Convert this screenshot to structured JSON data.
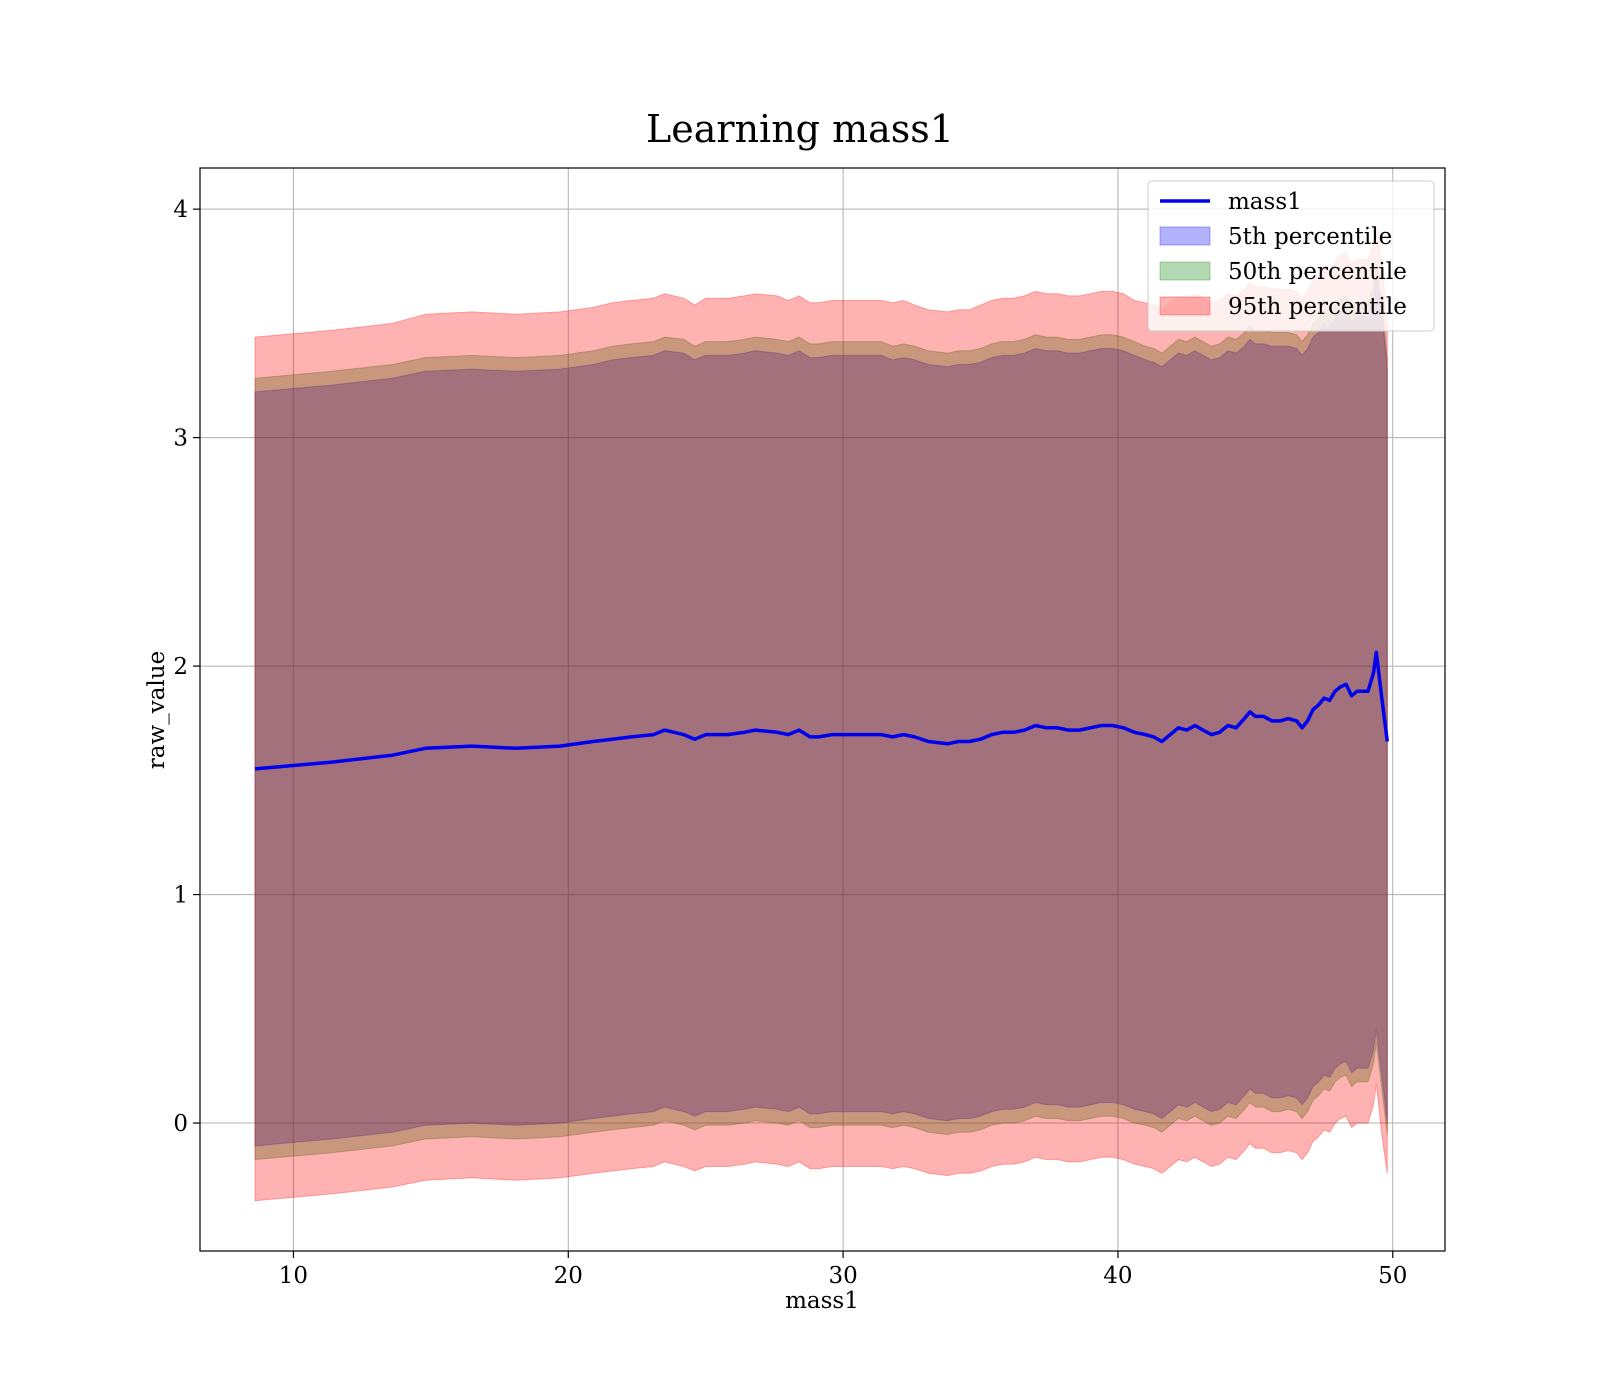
{
  "chart_data": {
    "type": "line",
    "title": "Learning mass1",
    "xlabel": "mass1",
    "ylabel": "raw_value",
    "xlim": [
      6.6,
      51.9
    ],
    "ylim": [
      -0.56,
      4.18
    ],
    "xticks": [
      10,
      20,
      30,
      40,
      50
    ],
    "yticks": [
      0,
      1,
      2,
      3,
      4
    ],
    "grid": true,
    "legend_position": "top-right",
    "colors": {
      "line": "#0000ee",
      "p5": "#0000ff",
      "p50": "#008000",
      "p95": "#ff0000"
    },
    "x": [
      8.6,
      11.4,
      13.6,
      14.8,
      16.5,
      18.1,
      19.7,
      20.9,
      21.6,
      22.3,
      23.1,
      23.5,
      24.2,
      24.6,
      25.0,
      25.8,
      26.4,
      26.8,
      27.6,
      28.0,
      28.4,
      28.8,
      29.1,
      29.6,
      30.0,
      30.6,
      31.4,
      31.8,
      32.2,
      32.6,
      33.1,
      33.8,
      34.2,
      34.6,
      35.0,
      35.4,
      35.8,
      36.2,
      36.6,
      37.0,
      37.4,
      37.8,
      38.2,
      38.6,
      39.0,
      39.4,
      39.8,
      40.2,
      40.6,
      41.0,
      41.3,
      41.6,
      41.9,
      42.2,
      42.5,
      42.8,
      43.1,
      43.4,
      43.7,
      44.0,
      44.3,
      44.6,
      44.8,
      45.0,
      45.3,
      45.6,
      45.9,
      46.2,
      46.5,
      46.7,
      46.9,
      47.1,
      47.3,
      47.5,
      47.7,
      47.9,
      48.1,
      48.3,
      48.5,
      48.7,
      48.9,
      49.1,
      49.3,
      49.4,
      49.6,
      49.8
    ],
    "series": [
      {
        "name": "mass1",
        "values": [
          1.55,
          1.58,
          1.61,
          1.64,
          1.65,
          1.64,
          1.65,
          1.67,
          1.68,
          1.69,
          1.7,
          1.72,
          1.7,
          1.68,
          1.7,
          1.7,
          1.71,
          1.72,
          1.71,
          1.7,
          1.72,
          1.69,
          1.69,
          1.7,
          1.7,
          1.7,
          1.7,
          1.69,
          1.7,
          1.69,
          1.67,
          1.66,
          1.67,
          1.67,
          1.68,
          1.7,
          1.71,
          1.71,
          1.72,
          1.74,
          1.73,
          1.73,
          1.72,
          1.72,
          1.73,
          1.74,
          1.74,
          1.73,
          1.71,
          1.7,
          1.69,
          1.67,
          1.7,
          1.73,
          1.72,
          1.74,
          1.72,
          1.7,
          1.71,
          1.74,
          1.73,
          1.77,
          1.8,
          1.78,
          1.78,
          1.76,
          1.76,
          1.77,
          1.76,
          1.73,
          1.76,
          1.81,
          1.83,
          1.86,
          1.85,
          1.89,
          1.91,
          1.92,
          1.87,
          1.89,
          1.89,
          1.89,
          1.97,
          2.06,
          1.86,
          1.67
        ]
      },
      {
        "name": "5th percentile",
        "upper": [
          3.2,
          3.23,
          3.26,
          3.29,
          3.3,
          3.29,
          3.3,
          3.32,
          3.34,
          3.35,
          3.36,
          3.38,
          3.37,
          3.34,
          3.36,
          3.36,
          3.37,
          3.38,
          3.37,
          3.36,
          3.38,
          3.35,
          3.35,
          3.36,
          3.36,
          3.36,
          3.36,
          3.34,
          3.35,
          3.34,
          3.32,
          3.31,
          3.32,
          3.32,
          3.33,
          3.35,
          3.36,
          3.36,
          3.37,
          3.39,
          3.38,
          3.38,
          3.37,
          3.37,
          3.38,
          3.39,
          3.39,
          3.38,
          3.36,
          3.34,
          3.33,
          3.31,
          3.34,
          3.37,
          3.36,
          3.38,
          3.36,
          3.34,
          3.35,
          3.38,
          3.37,
          3.4,
          3.43,
          3.41,
          3.41,
          3.4,
          3.4,
          3.4,
          3.39,
          3.36,
          3.39,
          3.44,
          3.46,
          3.5,
          3.48,
          3.52,
          3.55,
          3.56,
          3.51,
          3.53,
          3.53,
          3.53,
          3.61,
          3.7,
          3.55,
          3.3
        ],
        "lower": [
          -0.1,
          -0.07,
          -0.04,
          -0.01,
          0.0,
          -0.01,
          0.0,
          0.02,
          0.03,
          0.04,
          0.05,
          0.07,
          0.05,
          0.03,
          0.05,
          0.05,
          0.06,
          0.07,
          0.06,
          0.05,
          0.07,
          0.04,
          0.04,
          0.05,
          0.05,
          0.05,
          0.05,
          0.04,
          0.05,
          0.04,
          0.02,
          0.01,
          0.02,
          0.02,
          0.03,
          0.05,
          0.06,
          0.06,
          0.07,
          0.09,
          0.08,
          0.08,
          0.07,
          0.07,
          0.08,
          0.09,
          0.09,
          0.08,
          0.06,
          0.05,
          0.04,
          0.02,
          0.05,
          0.08,
          0.07,
          0.09,
          0.07,
          0.05,
          0.06,
          0.09,
          0.08,
          0.12,
          0.15,
          0.13,
          0.13,
          0.11,
          0.11,
          0.12,
          0.11,
          0.08,
          0.11,
          0.16,
          0.18,
          0.21,
          0.2,
          0.24,
          0.26,
          0.27,
          0.22,
          0.24,
          0.24,
          0.24,
          0.32,
          0.41,
          0.21,
          0.0
        ]
      },
      {
        "name": "50th percentile",
        "upper": [
          3.26,
          3.29,
          3.32,
          3.35,
          3.36,
          3.35,
          3.36,
          3.38,
          3.4,
          3.41,
          3.42,
          3.44,
          3.43,
          3.4,
          3.42,
          3.42,
          3.43,
          3.44,
          3.43,
          3.42,
          3.44,
          3.41,
          3.41,
          3.42,
          3.42,
          3.42,
          3.42,
          3.4,
          3.41,
          3.4,
          3.38,
          3.37,
          3.38,
          3.38,
          3.39,
          3.41,
          3.42,
          3.42,
          3.43,
          3.45,
          3.44,
          3.44,
          3.43,
          3.43,
          3.44,
          3.45,
          3.45,
          3.44,
          3.42,
          3.4,
          3.39,
          3.37,
          3.4,
          3.43,
          3.42,
          3.44,
          3.42,
          3.4,
          3.41,
          3.44,
          3.43,
          3.46,
          3.49,
          3.47,
          3.47,
          3.46,
          3.46,
          3.46,
          3.45,
          3.42,
          3.45,
          3.5,
          3.52,
          3.56,
          3.54,
          3.58,
          3.61,
          3.62,
          3.57,
          3.59,
          3.59,
          3.59,
          3.67,
          3.76,
          3.6,
          3.35
        ],
        "lower": [
          -0.16,
          -0.13,
          -0.1,
          -0.07,
          -0.06,
          -0.07,
          -0.06,
          -0.04,
          -0.03,
          -0.02,
          -0.01,
          0.01,
          -0.01,
          -0.03,
          -0.01,
          -0.01,
          0.0,
          0.01,
          0.0,
          -0.01,
          0.01,
          -0.02,
          -0.02,
          -0.01,
          -0.01,
          -0.01,
          -0.01,
          -0.02,
          -0.01,
          -0.02,
          -0.04,
          -0.05,
          -0.04,
          -0.04,
          -0.03,
          -0.01,
          0.0,
          0.0,
          0.01,
          0.03,
          0.02,
          0.02,
          0.01,
          0.01,
          0.02,
          0.03,
          0.03,
          0.02,
          0.0,
          -0.01,
          -0.02,
          -0.04,
          -0.01,
          0.02,
          0.01,
          0.03,
          0.01,
          -0.01,
          0.0,
          0.03,
          0.02,
          0.06,
          0.09,
          0.07,
          0.07,
          0.05,
          0.05,
          0.06,
          0.05,
          0.02,
          0.05,
          0.1,
          0.12,
          0.15,
          0.14,
          0.18,
          0.2,
          0.21,
          0.16,
          0.18,
          0.18,
          0.18,
          0.26,
          0.35,
          0.15,
          -0.05
        ]
      },
      {
        "name": "95th percentile",
        "upper": [
          3.44,
          3.47,
          3.5,
          3.54,
          3.55,
          3.54,
          3.55,
          3.57,
          3.59,
          3.6,
          3.61,
          3.63,
          3.61,
          3.58,
          3.61,
          3.61,
          3.62,
          3.63,
          3.62,
          3.6,
          3.62,
          3.59,
          3.59,
          3.6,
          3.6,
          3.6,
          3.6,
          3.59,
          3.6,
          3.58,
          3.56,
          3.55,
          3.56,
          3.56,
          3.58,
          3.6,
          3.61,
          3.61,
          3.62,
          3.64,
          3.63,
          3.63,
          3.62,
          3.62,
          3.63,
          3.64,
          3.64,
          3.63,
          3.6,
          3.59,
          3.58,
          3.56,
          3.59,
          3.62,
          3.61,
          3.63,
          3.61,
          3.59,
          3.6,
          3.63,
          3.62,
          3.65,
          3.68,
          3.66,
          3.66,
          3.65,
          3.65,
          3.65,
          3.64,
          3.61,
          3.64,
          3.69,
          3.71,
          3.75,
          3.73,
          3.77,
          3.8,
          3.81,
          3.76,
          3.78,
          3.78,
          3.78,
          3.86,
          3.92,
          3.75,
          3.5
        ],
        "lower": [
          -0.34,
          -0.31,
          -0.28,
          -0.25,
          -0.24,
          -0.25,
          -0.24,
          -0.22,
          -0.21,
          -0.2,
          -0.19,
          -0.17,
          -0.19,
          -0.21,
          -0.19,
          -0.19,
          -0.18,
          -0.17,
          -0.18,
          -0.19,
          -0.17,
          -0.2,
          -0.2,
          -0.19,
          -0.19,
          -0.19,
          -0.19,
          -0.2,
          -0.19,
          -0.2,
          -0.22,
          -0.23,
          -0.22,
          -0.22,
          -0.21,
          -0.19,
          -0.18,
          -0.18,
          -0.17,
          -0.15,
          -0.16,
          -0.16,
          -0.17,
          -0.17,
          -0.16,
          -0.15,
          -0.15,
          -0.16,
          -0.18,
          -0.19,
          -0.2,
          -0.22,
          -0.19,
          -0.16,
          -0.17,
          -0.15,
          -0.17,
          -0.19,
          -0.18,
          -0.15,
          -0.16,
          -0.12,
          -0.09,
          -0.11,
          -0.11,
          -0.13,
          -0.13,
          -0.12,
          -0.13,
          -0.16,
          -0.13,
          -0.08,
          -0.06,
          -0.03,
          -0.04,
          0.0,
          0.02,
          0.03,
          -0.02,
          0.0,
          0.0,
          0.0,
          0.08,
          0.17,
          -0.05,
          -0.22
        ]
      }
    ]
  }
}
